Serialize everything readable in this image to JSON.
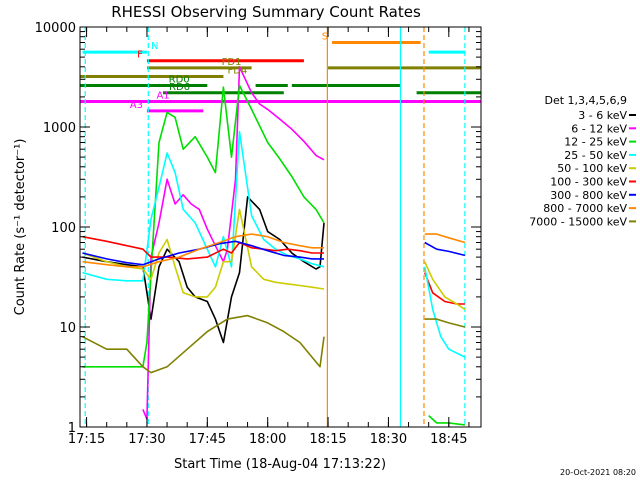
{
  "chart_data": {
    "type": "line",
    "title": "RHESSI Observing Summary Count Rates",
    "xlabel": "Start Time (18-Aug-04 17:13:22)",
    "ylabel": "Count Rate (s⁻¹ detector⁻¹)",
    "x_ticks": [
      "17:15",
      "17:30",
      "17:45",
      "18:00",
      "18:15",
      "18:30",
      "18:45"
    ],
    "y_ticks": [
      "1",
      "10",
      "100",
      "1000",
      "10000"
    ],
    "y_scale": "log",
    "ylim": [
      1,
      10000
    ],
    "xlim": [
      "17:13:22",
      "18:53"
    ],
    "timestamp": "20-Oct-2021 08:20",
    "legend": {
      "title": "Det 1,3,4,5,6,9",
      "placement": "right",
      "entries": [
        {
          "label": "3 - 6 keV",
          "color": "#000000"
        },
        {
          "label": "6 - 12 keV",
          "color": "#ff00ff"
        },
        {
          "label": "12 - 25 keV",
          "color": "#00dd00"
        },
        {
          "label": "25 - 50 keV",
          "color": "#00ffff"
        },
        {
          "label": "50 - 100 keV",
          "color": "#cccc00"
        },
        {
          "label": "100 - 300 keV",
          "color": "#ff0000"
        },
        {
          "label": "300 - 800 keV",
          "color": "#0000ff"
        },
        {
          "label": "800 - 7000 keV",
          "color": "#ff8800"
        },
        {
          "label": "7000 - 15000 keV",
          "color": "#808000"
        }
      ]
    },
    "flags": [
      {
        "label": "N",
        "color": "#00ffff",
        "level": 5600,
        "segments": [
          [
            "17:14",
            "17:30"
          ],
          [
            "18:40",
            "18:49"
          ]
        ]
      },
      {
        "label": "S",
        "color": "#ff8800",
        "level": 7000,
        "segments": [
          [
            "18:16",
            "18:38"
          ]
        ]
      },
      {
        "label": "F",
        "color": "#ff0000",
        "level": 4600,
        "segments": [
          [
            "17:30",
            "18:09"
          ]
        ]
      },
      {
        "label": "FD1",
        "color": "#808000",
        "level": 3900,
        "segments": [
          [
            "17:30",
            "17:56"
          ],
          [
            "18:15",
            "18:53"
          ]
        ]
      },
      {
        "label": "FD4",
        "color": "#808000",
        "level": 3200,
        "segments": [
          [
            "17:13:22",
            "17:49"
          ]
        ]
      },
      {
        "label": "RD0",
        "color": "#008000",
        "level": 2600,
        "segments": [
          [
            "17:13:22",
            "17:45"
          ],
          [
            "17:57",
            "18:05"
          ],
          [
            "18:06",
            "18:33"
          ]
        ]
      },
      {
        "label": "RD6",
        "color": "#008000",
        "level": 2200,
        "segments": [
          [
            "17:34",
            "18:04"
          ],
          [
            "18:37",
            "18:53"
          ]
        ]
      },
      {
        "label": "A1",
        "color": "#ff00ff",
        "level": 1800,
        "segments": [
          [
            "17:13:22",
            "18:53"
          ]
        ]
      },
      {
        "label": "A3",
        "color": "#ff00ff",
        "level": 1450,
        "segments": [
          [
            "17:30",
            "17:44"
          ]
        ]
      }
    ],
    "vertical_markers": [
      {
        "time": "17:14:40",
        "color": "#00ffff",
        "style": "dashed"
      },
      {
        "time": "17:30:20",
        "color": "#00ffff",
        "style": "dashed"
      },
      {
        "time": "18:14:50",
        "color": "#ff8800",
        "style": "solid"
      },
      {
        "time": "18:33",
        "color": "#00ffff",
        "style": "solid"
      },
      {
        "time": "18:38:50",
        "color": "#ff8800",
        "style": "dashed"
      },
      {
        "time": "18:49",
        "color": "#00ffff",
        "style": "dashed"
      }
    ],
    "series": [
      {
        "name": "3 - 6 keV",
        "color": "#000000",
        "points": [
          [
            "17:14",
            50
          ],
          [
            "17:20",
            45
          ],
          [
            "17:25",
            42
          ],
          [
            "17:29",
            40
          ],
          [
            "17:31",
            12
          ],
          [
            "17:33",
            40
          ],
          [
            "17:35",
            60
          ],
          [
            "17:38",
            45
          ],
          [
            "17:40",
            25
          ],
          [
            "17:42",
            20
          ],
          [
            "17:45",
            18
          ],
          [
            "17:47",
            12
          ],
          [
            "17:49",
            7
          ],
          [
            "17:51",
            20
          ],
          [
            "17:53",
            35
          ],
          [
            "17:55",
            200
          ],
          [
            "17:58",
            150
          ],
          [
            "18:00",
            90
          ],
          [
            "18:03",
            75
          ],
          [
            "18:06",
            55
          ],
          [
            "18:09",
            45
          ],
          [
            "18:12",
            38
          ],
          [
            "18:13",
            40
          ],
          [
            "18:14",
            110
          ]
        ]
      },
      {
        "name": "6 - 12 keV",
        "color": "#ff00ff",
        "points": [
          [
            "17:29",
            1.5
          ],
          [
            "17:30",
            1.2
          ],
          [
            "17:31",
            50
          ],
          [
            "17:33",
            110
          ],
          [
            "17:35",
            300
          ],
          [
            "17:37",
            170
          ],
          [
            "17:39",
            210
          ],
          [
            "17:41",
            170
          ],
          [
            "17:43",
            150
          ],
          [
            "17:45",
            95
          ],
          [
            "17:47",
            65
          ],
          [
            "17:49",
            45
          ],
          [
            "17:50",
            60
          ],
          [
            "17:52",
            300
          ],
          [
            "17:53",
            4000
          ],
          [
            "17:56",
            2200
          ],
          [
            "17:58",
            1700
          ],
          [
            "18:00",
            1500
          ],
          [
            "18:03",
            1200
          ],
          [
            "18:06",
            950
          ],
          [
            "18:09",
            720
          ],
          [
            "18:12",
            520
          ],
          [
            "18:14",
            470
          ]
        ]
      },
      {
        "name": "12 - 25 keV",
        "color": "#00dd00",
        "points": [
          [
            "17:14",
            4
          ],
          [
            "17:20",
            4
          ],
          [
            "17:25",
            4
          ],
          [
            "17:29",
            4
          ],
          [
            "17:30",
            7
          ],
          [
            "17:31",
            35
          ],
          [
            "17:33",
            700
          ],
          [
            "17:35",
            1400
          ],
          [
            "17:37",
            1250
          ],
          [
            "17:39",
            600
          ],
          [
            "17:42",
            800
          ],
          [
            "17:45",
            500
          ],
          [
            "17:47",
            350
          ],
          [
            "17:49",
            2500
          ],
          [
            "17:51",
            500
          ],
          [
            "17:53",
            2600
          ],
          [
            "17:56",
            1500
          ],
          [
            "18:00",
            700
          ],
          [
            "18:03",
            480
          ],
          [
            "18:06",
            320
          ],
          [
            "18:09",
            200
          ],
          [
            "18:12",
            150
          ],
          [
            "18:14",
            110
          ]
        ]
      },
      {
        "name": "25 - 50 keV",
        "color": "#00ffff",
        "points": [
          [
            "17:14",
            35
          ],
          [
            "17:20",
            30
          ],
          [
            "17:25",
            29
          ],
          [
            "17:29",
            29
          ],
          [
            "17:31",
            120
          ],
          [
            "17:33",
            250
          ],
          [
            "17:35",
            550
          ],
          [
            "17:37",
            350
          ],
          [
            "17:39",
            150
          ],
          [
            "17:42",
            110
          ],
          [
            "17:45",
            60
          ],
          [
            "17:47",
            40
          ],
          [
            "17:49",
            80
          ],
          [
            "17:51",
            40
          ],
          [
            "17:53",
            900
          ],
          [
            "17:56",
            130
          ],
          [
            "17:59",
            75
          ],
          [
            "18:02",
            60
          ],
          [
            "18:05",
            52
          ],
          [
            "18:08",
            48
          ],
          [
            "18:11",
            43
          ],
          [
            "18:14",
            40
          ]
        ]
      },
      {
        "name": "50 - 100 keV",
        "color": "#cccc00",
        "points": [
          [
            "17:14",
            55
          ],
          [
            "17:20",
            45
          ],
          [
            "17:25",
            40
          ],
          [
            "17:29",
            38
          ],
          [
            "17:31",
            30
          ],
          [
            "17:33",
            55
          ],
          [
            "17:35",
            75
          ],
          [
            "17:37",
            40
          ],
          [
            "17:39",
            22
          ],
          [
            "17:42",
            20
          ],
          [
            "17:45",
            20
          ],
          [
            "17:47",
            25
          ],
          [
            "17:49",
            45
          ],
          [
            "17:51",
            45
          ],
          [
            "17:53",
            150
          ],
          [
            "17:56",
            40
          ],
          [
            "17:59",
            30
          ],
          [
            "18:02",
            28
          ],
          [
            "18:05",
            27
          ],
          [
            "18:08",
            26
          ],
          [
            "18:11",
            25
          ],
          [
            "18:14",
            24
          ]
        ]
      },
      {
        "name": "100 - 300 keV",
        "color": "#ff0000",
        "points": [
          [
            "17:14",
            80
          ],
          [
            "17:20",
            72
          ],
          [
            "17:25",
            65
          ],
          [
            "17:29",
            60
          ],
          [
            "17:31",
            50
          ],
          [
            "17:35",
            50
          ],
          [
            "17:40",
            48
          ],
          [
            "17:45",
            50
          ],
          [
            "17:49",
            60
          ],
          [
            "17:51",
            55
          ],
          [
            "17:53",
            70
          ],
          [
            "17:56",
            62
          ],
          [
            "17:59",
            60
          ],
          [
            "18:02",
            58
          ],
          [
            "18:05",
            60
          ],
          [
            "18:08",
            58
          ],
          [
            "18:11",
            55
          ],
          [
            "18:14",
            55
          ]
        ]
      },
      {
        "name": "300 - 800 keV",
        "color": "#0000ff",
        "points": [
          [
            "17:14",
            55
          ],
          [
            "17:20",
            48
          ],
          [
            "17:25",
            44
          ],
          [
            "17:29",
            42
          ],
          [
            "17:33",
            48
          ],
          [
            "17:38",
            55
          ],
          [
            "17:43",
            60
          ],
          [
            "17:48",
            68
          ],
          [
            "17:52",
            72
          ],
          [
            "17:56",
            65
          ],
          [
            "18:00",
            58
          ],
          [
            "18:04",
            52
          ],
          [
            "18:08",
            50
          ],
          [
            "18:11",
            48
          ],
          [
            "18:14",
            48
          ]
        ]
      },
      {
        "name": "800 - 7000 keV",
        "color": "#ff8800",
        "points": [
          [
            "17:14",
            45
          ],
          [
            "17:20",
            42
          ],
          [
            "17:25",
            40
          ],
          [
            "17:29",
            40
          ],
          [
            "17:33",
            45
          ],
          [
            "17:38",
            50
          ],
          [
            "17:43",
            60
          ],
          [
            "17:48",
            70
          ],
          [
            "17:52",
            80
          ],
          [
            "17:56",
            85
          ],
          [
            "18:00",
            80
          ],
          [
            "18:04",
            70
          ],
          [
            "18:08",
            65
          ],
          [
            "18:11",
            62
          ],
          [
            "18:14",
            62
          ]
        ]
      },
      {
        "name": "7000 - 15000 keV",
        "color": "#808000",
        "points": [
          [
            "17:14",
            8
          ],
          [
            "17:20",
            6
          ],
          [
            "17:25",
            6
          ],
          [
            "17:29",
            4
          ],
          [
            "17:31",
            3.5
          ],
          [
            "17:35",
            4
          ],
          [
            "17:40",
            6
          ],
          [
            "17:45",
            9
          ],
          [
            "17:50",
            12
          ],
          [
            "17:55",
            13
          ],
          [
            "18:00",
            11
          ],
          [
            "18:04",
            9
          ],
          [
            "18:08",
            7
          ],
          [
            "18:11",
            5
          ],
          [
            "18:13",
            4
          ],
          [
            "18:14",
            8
          ]
        ]
      },
      {
        "name": "100 - 300 keV",
        "color": "#ff0000",
        "points": [
          [
            "18:39",
            35
          ],
          [
            "18:41",
            22
          ],
          [
            "18:44",
            18
          ],
          [
            "18:47",
            17
          ],
          [
            "18:49",
            17
          ]
        ]
      },
      {
        "name": "300 - 800 keV",
        "color": "#0000ff",
        "points": [
          [
            "18:39",
            70
          ],
          [
            "18:42",
            60
          ],
          [
            "18:45",
            57
          ],
          [
            "18:49",
            52
          ]
        ]
      },
      {
        "name": "800 - 7000 keV",
        "color": "#ff8800",
        "points": [
          [
            "18:39",
            85
          ],
          [
            "18:42",
            85
          ],
          [
            "18:45",
            78
          ],
          [
            "18:49",
            70
          ]
        ]
      },
      {
        "name": "50 - 100 keV",
        "color": "#cccc00",
        "points": [
          [
            "18:39",
            45
          ],
          [
            "18:41",
            30
          ],
          [
            "18:44",
            20
          ],
          [
            "18:47",
            17
          ],
          [
            "18:49",
            15
          ]
        ]
      },
      {
        "name": "25 - 50 keV",
        "color": "#00ffff",
        "points": [
          [
            "18:39",
            40
          ],
          [
            "18:41",
            15
          ],
          [
            "18:43",
            8
          ],
          [
            "18:45",
            6
          ],
          [
            "18:49",
            5
          ]
        ]
      },
      {
        "name": "7000 - 15000 keV",
        "color": "#808000",
        "points": [
          [
            "18:39",
            12
          ],
          [
            "18:42",
            12
          ],
          [
            "18:45",
            11
          ],
          [
            "18:49",
            10
          ]
        ]
      },
      {
        "name": "12 - 25 keV",
        "color": "#00dd00",
        "points": [
          [
            "18:40",
            1.3
          ],
          [
            "18:42",
            1.1
          ],
          [
            "18:45",
            1.1
          ],
          [
            "18:49",
            1.05
          ]
        ]
      }
    ]
  }
}
